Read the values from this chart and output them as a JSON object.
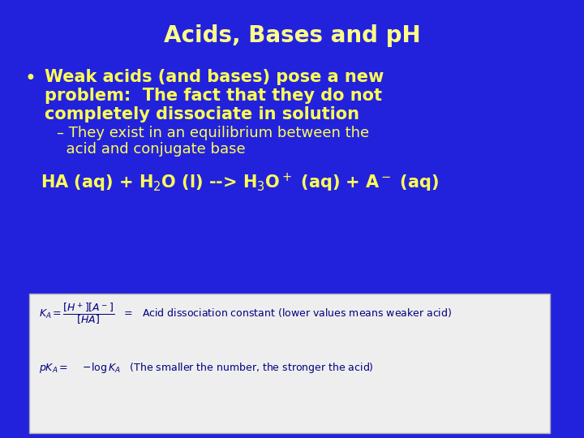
{
  "background_color": "#2222dd",
  "title": "Acids, Bases and pH",
  "title_color": "#ffff88",
  "title_fontsize": 20,
  "bullet_color": "#ffff55",
  "bullet_fontsize": 15,
  "sub_bullet_fontsize": 13,
  "equation_fontsize": 15,
  "box_bg": "#eeeeee",
  "box_text_color": "#000080",
  "bullet1_line1": "Weak acids (and bases) pose a new",
  "bullet1_line2": "problem:  The fact that they do not",
  "bullet1_line3": "completely dissociate in solution",
  "sub1_line1": "– They exist in an equilibrium between the",
  "sub1_line2": "  acid and conjugate base",
  "equation": "HA (aq) + H$_2$O (l) --> H$_3$O$^+$ (aq) + A$^-$ (aq)"
}
